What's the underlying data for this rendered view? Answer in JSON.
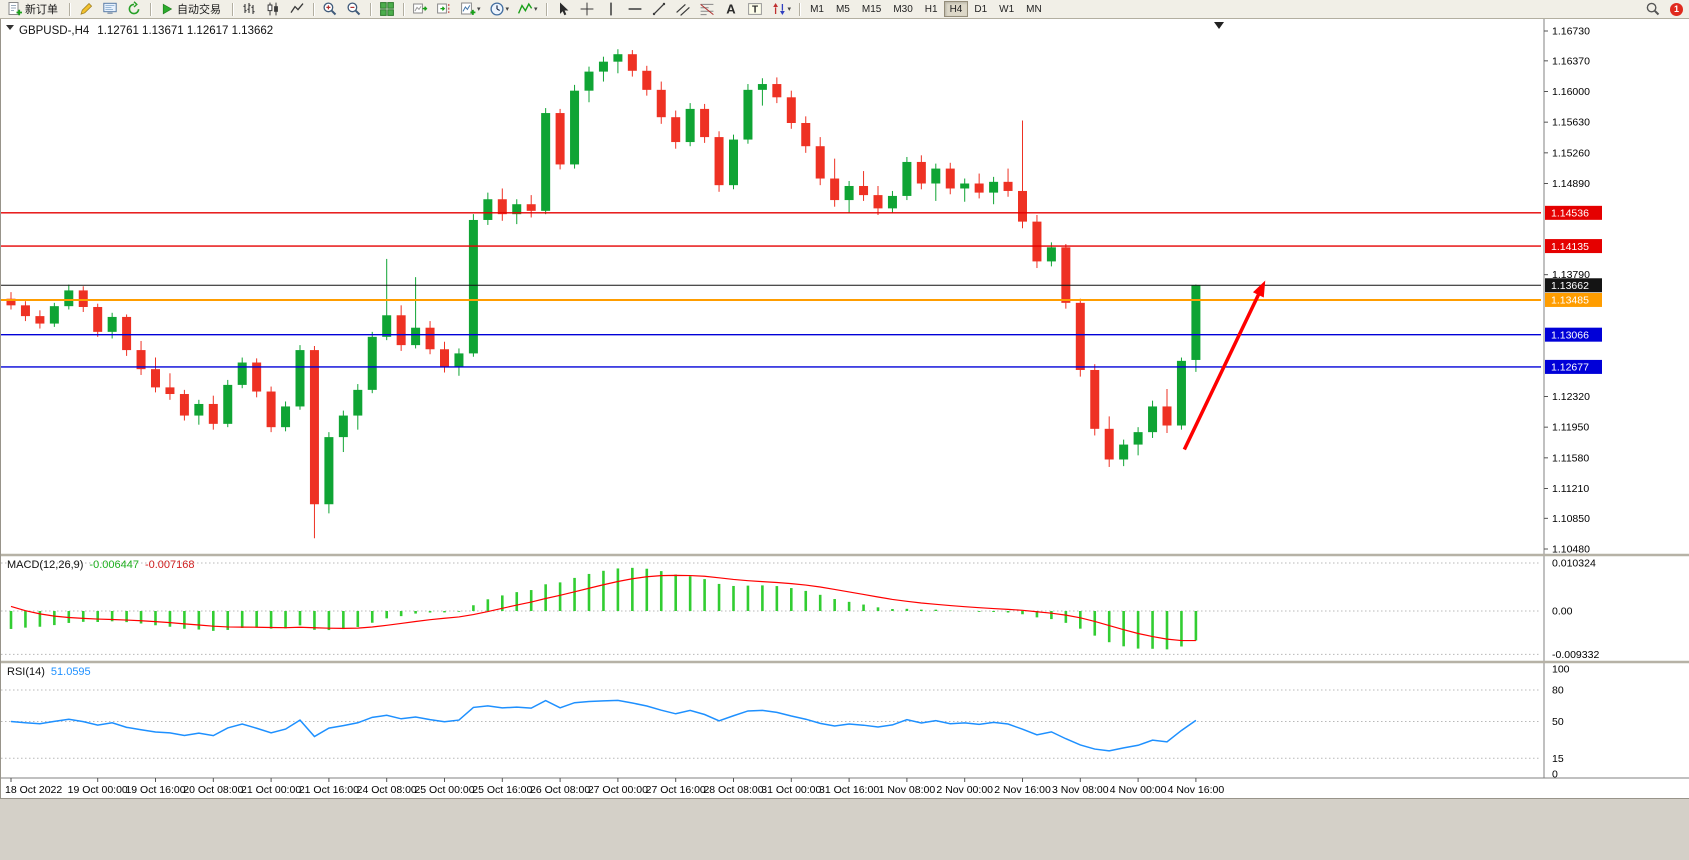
{
  "window": {
    "background": "#d4d0c8",
    "toolbar_background": "#f1efe7"
  },
  "toolbar": {
    "groups": [
      {
        "items": [
          {
            "name": "new-order-button",
            "icon": "new-order-icon",
            "label": "新订单"
          }
        ]
      },
      {
        "items": [
          {
            "name": "metaeditor-button",
            "icon": "pencil-icon"
          },
          {
            "name": "market-watch-button",
            "icon": "monitor-icon"
          },
          {
            "name": "refresh-button",
            "icon": "refresh-icon"
          }
        ]
      },
      {
        "items": [
          {
            "name": "autotrading-button",
            "icon": "play-icon",
            "label": "自动交易"
          }
        ]
      },
      {
        "items": [
          {
            "name": "bar-chart-button",
            "icon": "bar-chart-icon"
          },
          {
            "name": "candlestick-chart-button",
            "icon": "candlestick-icon"
          },
          {
            "name": "line-chart-button",
            "icon": "line-chart-icon"
          }
        ]
      },
      {
        "items": [
          {
            "name": "zoom-in-button",
            "icon": "zoom-in-icon"
          },
          {
            "name": "zoom-out-button",
            "icon": "zoom-out-icon"
          }
        ]
      },
      {
        "items": [
          {
            "name": "tile-windows-button",
            "icon": "tile-windows-icon"
          }
        ]
      },
      {
        "items": [
          {
            "name": "auto-scroll-button",
            "icon": "auto-scroll-icon"
          },
          {
            "name": "chart-shift-button",
            "icon": "chart-shift-icon"
          },
          {
            "name": "new-chart-button",
            "icon": "new-chart-icon",
            "dropdown": true
          },
          {
            "name": "periods-button",
            "icon": "clock-icon",
            "dropdown": true
          },
          {
            "name": "indicators-button",
            "icon": "indicators-icon",
            "dropdown": true
          }
        ]
      },
      {
        "items": [
          {
            "name": "cursor-button",
            "icon": "cursor-icon"
          },
          {
            "name": "crosshair-button",
            "icon": "crosshair-icon"
          },
          {
            "name": "vertical-line-button",
            "icon": "vline-icon"
          },
          {
            "name": "horizontal-line-button",
            "icon": "hline-icon"
          },
          {
            "name": "trendline-button",
            "icon": "trendline-icon"
          },
          {
            "name": "equidistant-channel-button",
            "icon": "channel-icon"
          },
          {
            "name": "fibonacci-retracement-button",
            "icon": "fibonacci-icon"
          },
          {
            "name": "text-button",
            "icon": "text-icon"
          },
          {
            "name": "text-label-button",
            "icon": "text-label-icon"
          },
          {
            "name": "arrows-button",
            "icon": "arrows-icon",
            "dropdown": true
          }
        ]
      }
    ],
    "timeframes": [
      "M1",
      "M5",
      "M15",
      "M30",
      "H1",
      "H4",
      "D1",
      "W1",
      "MN"
    ],
    "active_timeframe": "H4",
    "notification_count": "1"
  },
  "chart": {
    "symbol_period": "GBPUSD-,H4",
    "ohlc_text": "1.12761 1.13671 1.12617 1.13662"
  },
  "chart_data": {
    "type": "candlestick",
    "symbol": "GBPUSD-",
    "period": "H4",
    "current_candle": {
      "open": 1.12761,
      "high": 1.13671,
      "low": 1.12617,
      "close": 1.13662
    },
    "styles": {
      "background": "#ffffff",
      "bull": "#0fa434",
      "bear": "#ee3123",
      "axis_text": "#000000"
    },
    "price_axis": {
      "max": 1.1673,
      "min": 1.1048,
      "ticks": [
        {
          "price": 1.1673,
          "label": "1.16730"
        },
        {
          "price": 1.1637,
          "label": "1.16370"
        },
        {
          "price": 1.16,
          "label": "1.16000"
        },
        {
          "price": 1.1563,
          "label": "1.15630"
        },
        {
          "price": 1.1526,
          "label": "1.15260"
        },
        {
          "price": 1.1489,
          "label": "1.14890"
        },
        {
          "price": 1.1379,
          "label": "1.13790"
        },
        {
          "price": 1.1232,
          "label": "1.12320"
        },
        {
          "price": 1.1195,
          "label": "1.11950"
        },
        {
          "price": 1.1158,
          "label": "1.11580"
        },
        {
          "price": 1.1121,
          "label": "1.11210"
        },
        {
          "price": 1.1085,
          "label": "1.10850"
        },
        {
          "price": 1.1048,
          "label": "1.10480"
        }
      ]
    },
    "hlines": [
      {
        "name": "resistance-line-1",
        "price": 1.14536,
        "label": "1.14536",
        "color": "#e50000",
        "width": 1.4
      },
      {
        "name": "resistance-line-2",
        "price": 1.14135,
        "label": "1.14135",
        "color": "#e50000",
        "width": 1.4
      },
      {
        "name": "pivot-line",
        "price": 1.13485,
        "label": "1.13485",
        "color": "#ff9d00",
        "width": 2
      },
      {
        "name": "support-line-1",
        "price": 1.13066,
        "label": "1.13066",
        "color": "#0000d8",
        "width": 1.4
      },
      {
        "name": "support-line-2",
        "price": 1.12677,
        "label": "1.12677",
        "color": "#0000d8",
        "width": 1.4
      },
      {
        "name": "current-price-line",
        "price": 1.13662,
        "label": "1.13662",
        "color": "#141414",
        "width": 1
      }
    ],
    "arrow": {
      "from_index": 81.2,
      "from_price": 1.1168,
      "to_index": 86.8,
      "to_price": 1.1372,
      "color": "#ff0000",
      "width": 3.5
    },
    "shift_marker_index": 83.6,
    "time_labels": [
      {
        "index": 0,
        "text": "18 Oct 2022"
      },
      {
        "index": 6,
        "text": "19 Oct 00:00"
      },
      {
        "index": 10,
        "text": "19 Oct 16:00"
      },
      {
        "index": 14,
        "text": "20 Oct 08:00"
      },
      {
        "index": 18,
        "text": "21 Oct 00:00"
      },
      {
        "index": 22,
        "text": "21 Oct 16:00"
      },
      {
        "index": 26,
        "text": "24 Oct 08:00"
      },
      {
        "index": 30,
        "text": "25 Oct 00:00"
      },
      {
        "index": 34,
        "text": "25 Oct 16:00"
      },
      {
        "index": 38,
        "text": "26 Oct 08:00"
      },
      {
        "index": 42,
        "text": "27 Oct 00:00"
      },
      {
        "index": 46,
        "text": "27 Oct 16:00"
      },
      {
        "index": 50,
        "text": "28 Oct 08:00"
      },
      {
        "index": 54,
        "text": "31 Oct 00:00"
      },
      {
        "index": 58,
        "text": "31 Oct 16:00"
      },
      {
        "index": 62,
        "text": "1 Nov 08:00"
      },
      {
        "index": 66,
        "text": "2 Nov 00:00"
      },
      {
        "index": 70,
        "text": "2 Nov 16:00"
      },
      {
        "index": 74,
        "text": "3 Nov 08:00"
      },
      {
        "index": 78,
        "text": "4 Nov 00:00"
      },
      {
        "index": 82,
        "text": "4 Nov 16:00"
      }
    ],
    "candles": [
      [
        1.135,
        1.1358,
        1.1337,
        1.1342
      ],
      [
        1.1342,
        1.1347,
        1.1323,
        1.1329
      ],
      [
        1.1329,
        1.1336,
        1.1314,
        1.132
      ],
      [
        1.132,
        1.1345,
        1.1316,
        1.1341
      ],
      [
        1.1341,
        1.1367,
        1.1337,
        1.136
      ],
      [
        1.136,
        1.1365,
        1.1334,
        1.134
      ],
      [
        1.134,
        1.1344,
        1.1304,
        1.131
      ],
      [
        1.131,
        1.1333,
        1.1302,
        1.1328
      ],
      [
        1.1328,
        1.1331,
        1.1281,
        1.1288
      ],
      [
        1.1288,
        1.1299,
        1.1258,
        1.1265
      ],
      [
        1.1265,
        1.1279,
        1.1237,
        1.1243
      ],
      [
        1.1243,
        1.126,
        1.1228,
        1.1235
      ],
      [
        1.1235,
        1.124,
        1.1203,
        1.1209
      ],
      [
        1.1209,
        1.1228,
        1.1198,
        1.1223
      ],
      [
        1.1223,
        1.1233,
        1.1192,
        1.1199
      ],
      [
        1.1199,
        1.1252,
        1.1195,
        1.1246
      ],
      [
        1.1246,
        1.1279,
        1.1242,
        1.1273
      ],
      [
        1.1273,
        1.1278,
        1.1231,
        1.1238
      ],
      [
        1.1238,
        1.1244,
        1.1189,
        1.1195
      ],
      [
        1.1195,
        1.1226,
        1.119,
        1.122
      ],
      [
        1.122,
        1.1294,
        1.1216,
        1.1288
      ],
      [
        1.1288,
        1.1293,
        1.1061,
        1.1102
      ],
      [
        1.1102,
        1.1189,
        1.1091,
        1.1183
      ],
      [
        1.1183,
        1.1215,
        1.1165,
        1.1209
      ],
      [
        1.1209,
        1.1247,
        1.1192,
        1.124
      ],
      [
        1.124,
        1.131,
        1.1236,
        1.1304
      ],
      [
        1.1304,
        1.1398,
        1.13,
        1.133
      ],
      [
        1.133,
        1.1342,
        1.1287,
        1.1294
      ],
      [
        1.1294,
        1.1376,
        1.129,
        1.1315
      ],
      [
        1.1315,
        1.1323,
        1.1283,
        1.1289
      ],
      [
        1.1289,
        1.1298,
        1.1261,
        1.1268
      ],
      [
        1.1268,
        1.129,
        1.1257,
        1.1284
      ],
      [
        1.1284,
        1.1452,
        1.128,
        1.1445
      ],
      [
        1.1445,
        1.1478,
        1.1439,
        1.147
      ],
      [
        1.147,
        1.1483,
        1.1444,
        1.1452
      ],
      [
        1.1452,
        1.147,
        1.144,
        1.1464
      ],
      [
        1.1464,
        1.1475,
        1.1448,
        1.1456
      ],
      [
        1.1456,
        1.158,
        1.1452,
        1.1574
      ],
      [
        1.1574,
        1.1579,
        1.1506,
        1.1512
      ],
      [
        1.1512,
        1.1608,
        1.1507,
        1.1601
      ],
      [
        1.1601,
        1.163,
        1.1587,
        1.1624
      ],
      [
        1.1624,
        1.1642,
        1.1612,
        1.1636
      ],
      [
        1.1636,
        1.1651,
        1.1622,
        1.1645
      ],
      [
        1.1645,
        1.165,
        1.1618,
        1.1625
      ],
      [
        1.1625,
        1.1631,
        1.1595,
        1.1602
      ],
      [
        1.1602,
        1.1612,
        1.1561,
        1.1569
      ],
      [
        1.1569,
        1.1577,
        1.1531,
        1.1539
      ],
      [
        1.1539,
        1.1586,
        1.1534,
        1.1579
      ],
      [
        1.1579,
        1.1585,
        1.1538,
        1.1545
      ],
      [
        1.1545,
        1.1552,
        1.1479,
        1.1487
      ],
      [
        1.1487,
        1.1548,
        1.1482,
        1.1542
      ],
      [
        1.1542,
        1.1609,
        1.1537,
        1.1602
      ],
      [
        1.1602,
        1.1616,
        1.1583,
        1.1609
      ],
      [
        1.1609,
        1.1617,
        1.1586,
        1.1593
      ],
      [
        1.1593,
        1.1601,
        1.1555,
        1.1562
      ],
      [
        1.1562,
        1.157,
        1.1526,
        1.1534
      ],
      [
        1.1534,
        1.1545,
        1.1487,
        1.1495
      ],
      [
        1.1495,
        1.1519,
        1.1461,
        1.1469
      ],
      [
        1.1469,
        1.1492,
        1.1454,
        1.1486
      ],
      [
        1.1486,
        1.1504,
        1.1468,
        1.1475
      ],
      [
        1.1475,
        1.1486,
        1.1451,
        1.1459
      ],
      [
        1.1459,
        1.148,
        1.1453,
        1.1474
      ],
      [
        1.1474,
        1.1521,
        1.1469,
        1.1515
      ],
      [
        1.1515,
        1.1523,
        1.1482,
        1.1489
      ],
      [
        1.1489,
        1.1513,
        1.1468,
        1.1507
      ],
      [
        1.1507,
        1.1514,
        1.1476,
        1.1483
      ],
      [
        1.1483,
        1.1495,
        1.1467,
        1.1489
      ],
      [
        1.1489,
        1.1501,
        1.1471,
        1.1478
      ],
      [
        1.1478,
        1.1497,
        1.1464,
        1.1491
      ],
      [
        1.1491,
        1.1507,
        1.1473,
        1.148
      ],
      [
        1.148,
        1.1565,
        1.1435,
        1.1443
      ],
      [
        1.1443,
        1.1451,
        1.1387,
        1.1395
      ],
      [
        1.1395,
        1.1418,
        1.1389,
        1.1412
      ],
      [
        1.1412,
        1.1416,
        1.1338,
        1.1345
      ],
      [
        1.1345,
        1.135,
        1.1256,
        1.1264
      ],
      [
        1.1264,
        1.1271,
        1.1185,
        1.1193
      ],
      [
        1.1193,
        1.1208,
        1.1147,
        1.1156
      ],
      [
        1.1156,
        1.118,
        1.1148,
        1.1174
      ],
      [
        1.1174,
        1.1195,
        1.1161,
        1.1189
      ],
      [
        1.1189,
        1.1227,
        1.1182,
        1.122
      ],
      [
        1.122,
        1.1241,
        1.1188,
        1.1197
      ],
      [
        1.1197,
        1.1279,
        1.1192,
        1.1275
      ],
      [
        1.12761,
        1.13671,
        1.12617,
        1.13662
      ]
    ],
    "macd": {
      "label": "MACD(12,26,9)",
      "main_value": "-0.006447",
      "signal_value": "-0.007168",
      "histogram_color": "#32cd32",
      "signal_color": "#ff0000",
      "scale": {
        "top": 0.010324,
        "top_label": "0.010324",
        "zero_label": "0.00",
        "bottom": -0.009332,
        "bottom_label": "-0.009332"
      }
    },
    "rsi": {
      "label": "RSI(14)",
      "value": "51.0595",
      "color": "#1e90ff",
      "period": 14,
      "scale_top_label": "100",
      "scale_bottom_label": "0",
      "levels": [
        {
          "value": 80,
          "label": "80"
        },
        {
          "value": 50,
          "label": "50"
        },
        {
          "value": 15,
          "label": "15"
        }
      ]
    }
  }
}
